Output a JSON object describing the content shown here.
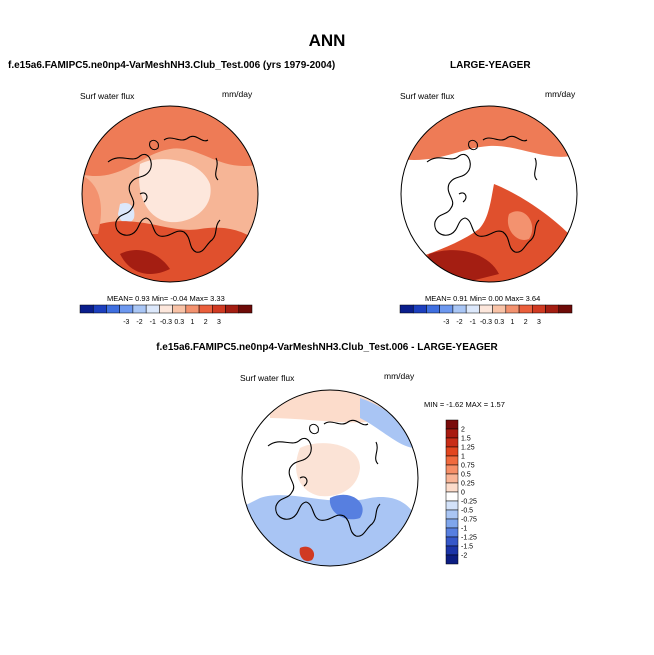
{
  "figure": {
    "title": "ANN"
  },
  "panels": {
    "test": {
      "title": "f.e15a6.FAMIPC5.ne0np4-VarMeshNH3.Club_Test.006 (yrs 1979-2004)",
      "variable": "Surf water flux",
      "units": "mm/day",
      "stats_text": "MEAN=   0.93  Min=  -0.04  Max=   3.33",
      "colorbar_labels": [
        "-3",
        "-2",
        "-1",
        "-0.3",
        "0.3",
        "1",
        "2",
        "3"
      ],
      "colorbar_colors": [
        "#0a1e8c",
        "#1c3fbe",
        "#3f6fe0",
        "#6d98ef",
        "#a9c6f5",
        "#dce8fb",
        "#fde7dc",
        "#f9c3a7",
        "#f3926f",
        "#ea5f3c",
        "#d03a22",
        "#a41e12",
        "#6e0b08"
      ]
    },
    "obs": {
      "title": "LARGE-YEAGER",
      "variable": "Surf water flux",
      "units": "mm/day",
      "stats_text": "MEAN=   0.91  Min=   0.00  Max=   3.64",
      "colorbar_labels": [
        "-3",
        "-2",
        "-1",
        "-0.3",
        "0.3",
        "1",
        "2",
        "3"
      ],
      "colorbar_colors": [
        "#0a1e8c",
        "#1c3fbe",
        "#3f6fe0",
        "#6d98ef",
        "#a9c6f5",
        "#dce8fb",
        "#fde7dc",
        "#f9c3a7",
        "#f3926f",
        "#ea5f3c",
        "#d03a22",
        "#a41e12",
        "#6e0b08"
      ]
    },
    "diff": {
      "title": "f.e15a6.FAMIPC5.ne0np4-VarMeshNH3.Club_Test.006 - LARGE-YEAGER",
      "variable": "Surf water flux",
      "units": "mm/day",
      "stats_text": "MIN =  -1.62 MAX =   1.57",
      "colorbar_labels": [
        "2",
        "1.5",
        "1.25",
        "1",
        "0.75",
        "0.5",
        "0.25",
        "0",
        "-0.25",
        "-0.5",
        "-0.75",
        "-1",
        "-1.25",
        "-1.5",
        "-2"
      ],
      "colorbar_colors": [
        "#7a0c0c",
        "#a81a10",
        "#c92d17",
        "#e2461f",
        "#f06a3e",
        "#f68f68",
        "#f9b597",
        "#fcdccb",
        "#ffffff",
        "#d3e2f9",
        "#a9c5f4",
        "#7fa6ec",
        "#577fe0",
        "#3557c9",
        "#1b34a8",
        "#0c1d82"
      ]
    }
  }
}
